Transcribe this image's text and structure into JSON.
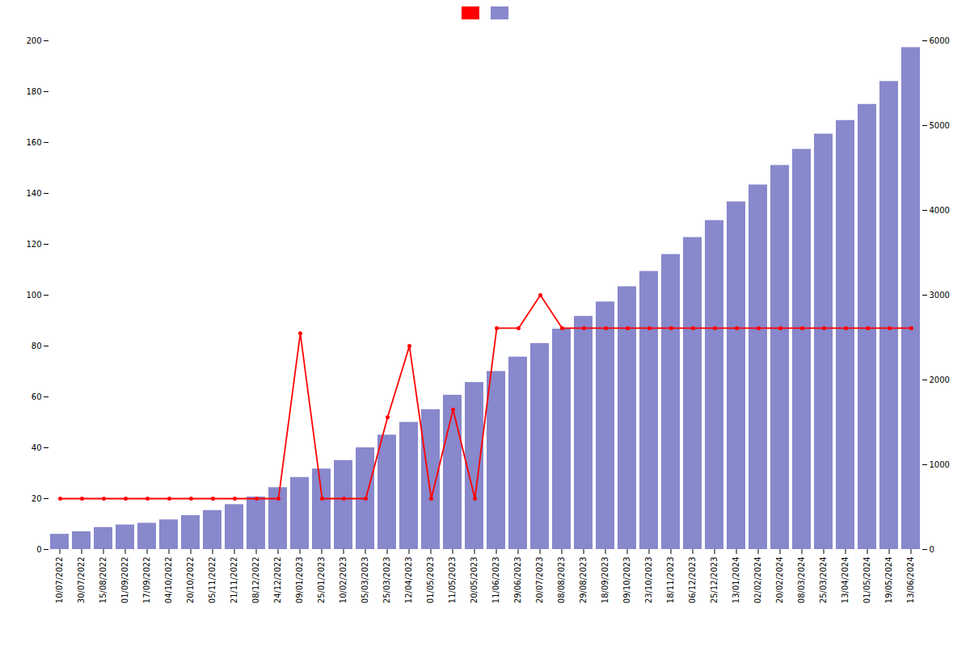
{
  "chart_data": {
    "type": "bar",
    "categories": [
      "10/07/2022",
      "30/07/2022",
      "15/08/2022",
      "01/09/2022",
      "17/09/2022",
      "04/10/2022",
      "20/10/2022",
      "05/11/2022",
      "21/11/2022",
      "08/12/2022",
      "24/12/2022",
      "09/01/2023",
      "25/01/2023",
      "10/02/2023",
      "05/03/2023",
      "25/03/2023",
      "12/04/2023",
      "01/05/2023",
      "11/05/2023",
      "20/05/2023",
      "11/06/2023",
      "29/06/2023",
      "20/07/2023",
      "08/08/2023",
      "29/08/2023",
      "18/09/2023",
      "09/10/2023",
      "23/10/2023",
      "18/11/2023",
      "06/12/2023",
      "25/12/2023",
      "13/01/2024",
      "02/02/2024",
      "20/02/2024",
      "08/03/2024",
      "25/03/2024",
      "13/04/2024",
      "01/05/2024",
      "19/05/2024",
      "13/06/2024"
    ],
    "series": [
      {
        "type": "line",
        "color": "#ff0000",
        "marker": "circle",
        "values": [
          20,
          20,
          20,
          20,
          20,
          20,
          20,
          20,
          20,
          20,
          20,
          85,
          20,
          20,
          20,
          52,
          80,
          20,
          55,
          20,
          87,
          87,
          100,
          87,
          87,
          87,
          87,
          87,
          87,
          87,
          87,
          87,
          87,
          87,
          87,
          87,
          87,
          87,
          87,
          87
        ]
      },
      {
        "type": "bar",
        "color": "#8888cc",
        "axis": "y2",
        "values": [
          180,
          210,
          260,
          290,
          310,
          350,
          400,
          460,
          530,
          620,
          730,
          850,
          950,
          1050,
          1200,
          1350,
          1500,
          1650,
          1820,
          1970,
          2100,
          2270,
          2430,
          2600,
          2750,
          2920,
          3100,
          3280,
          3480,
          3680,
          3880,
          4100,
          4300,
          4530,
          4720,
          4900,
          5060,
          5250,
          5520,
          5920
        ]
      }
    ],
    "ylim": [
      0,
      200
    ],
    "yticks": [
      0,
      20,
      40,
      60,
      80,
      100,
      120,
      140,
      160,
      180,
      200
    ],
    "y2lim": [
      0,
      6000
    ],
    "y2ticks": [
      0,
      1000,
      2000,
      3000,
      4000,
      5000,
      6000
    ],
    "grid": false,
    "legend": "top"
  }
}
